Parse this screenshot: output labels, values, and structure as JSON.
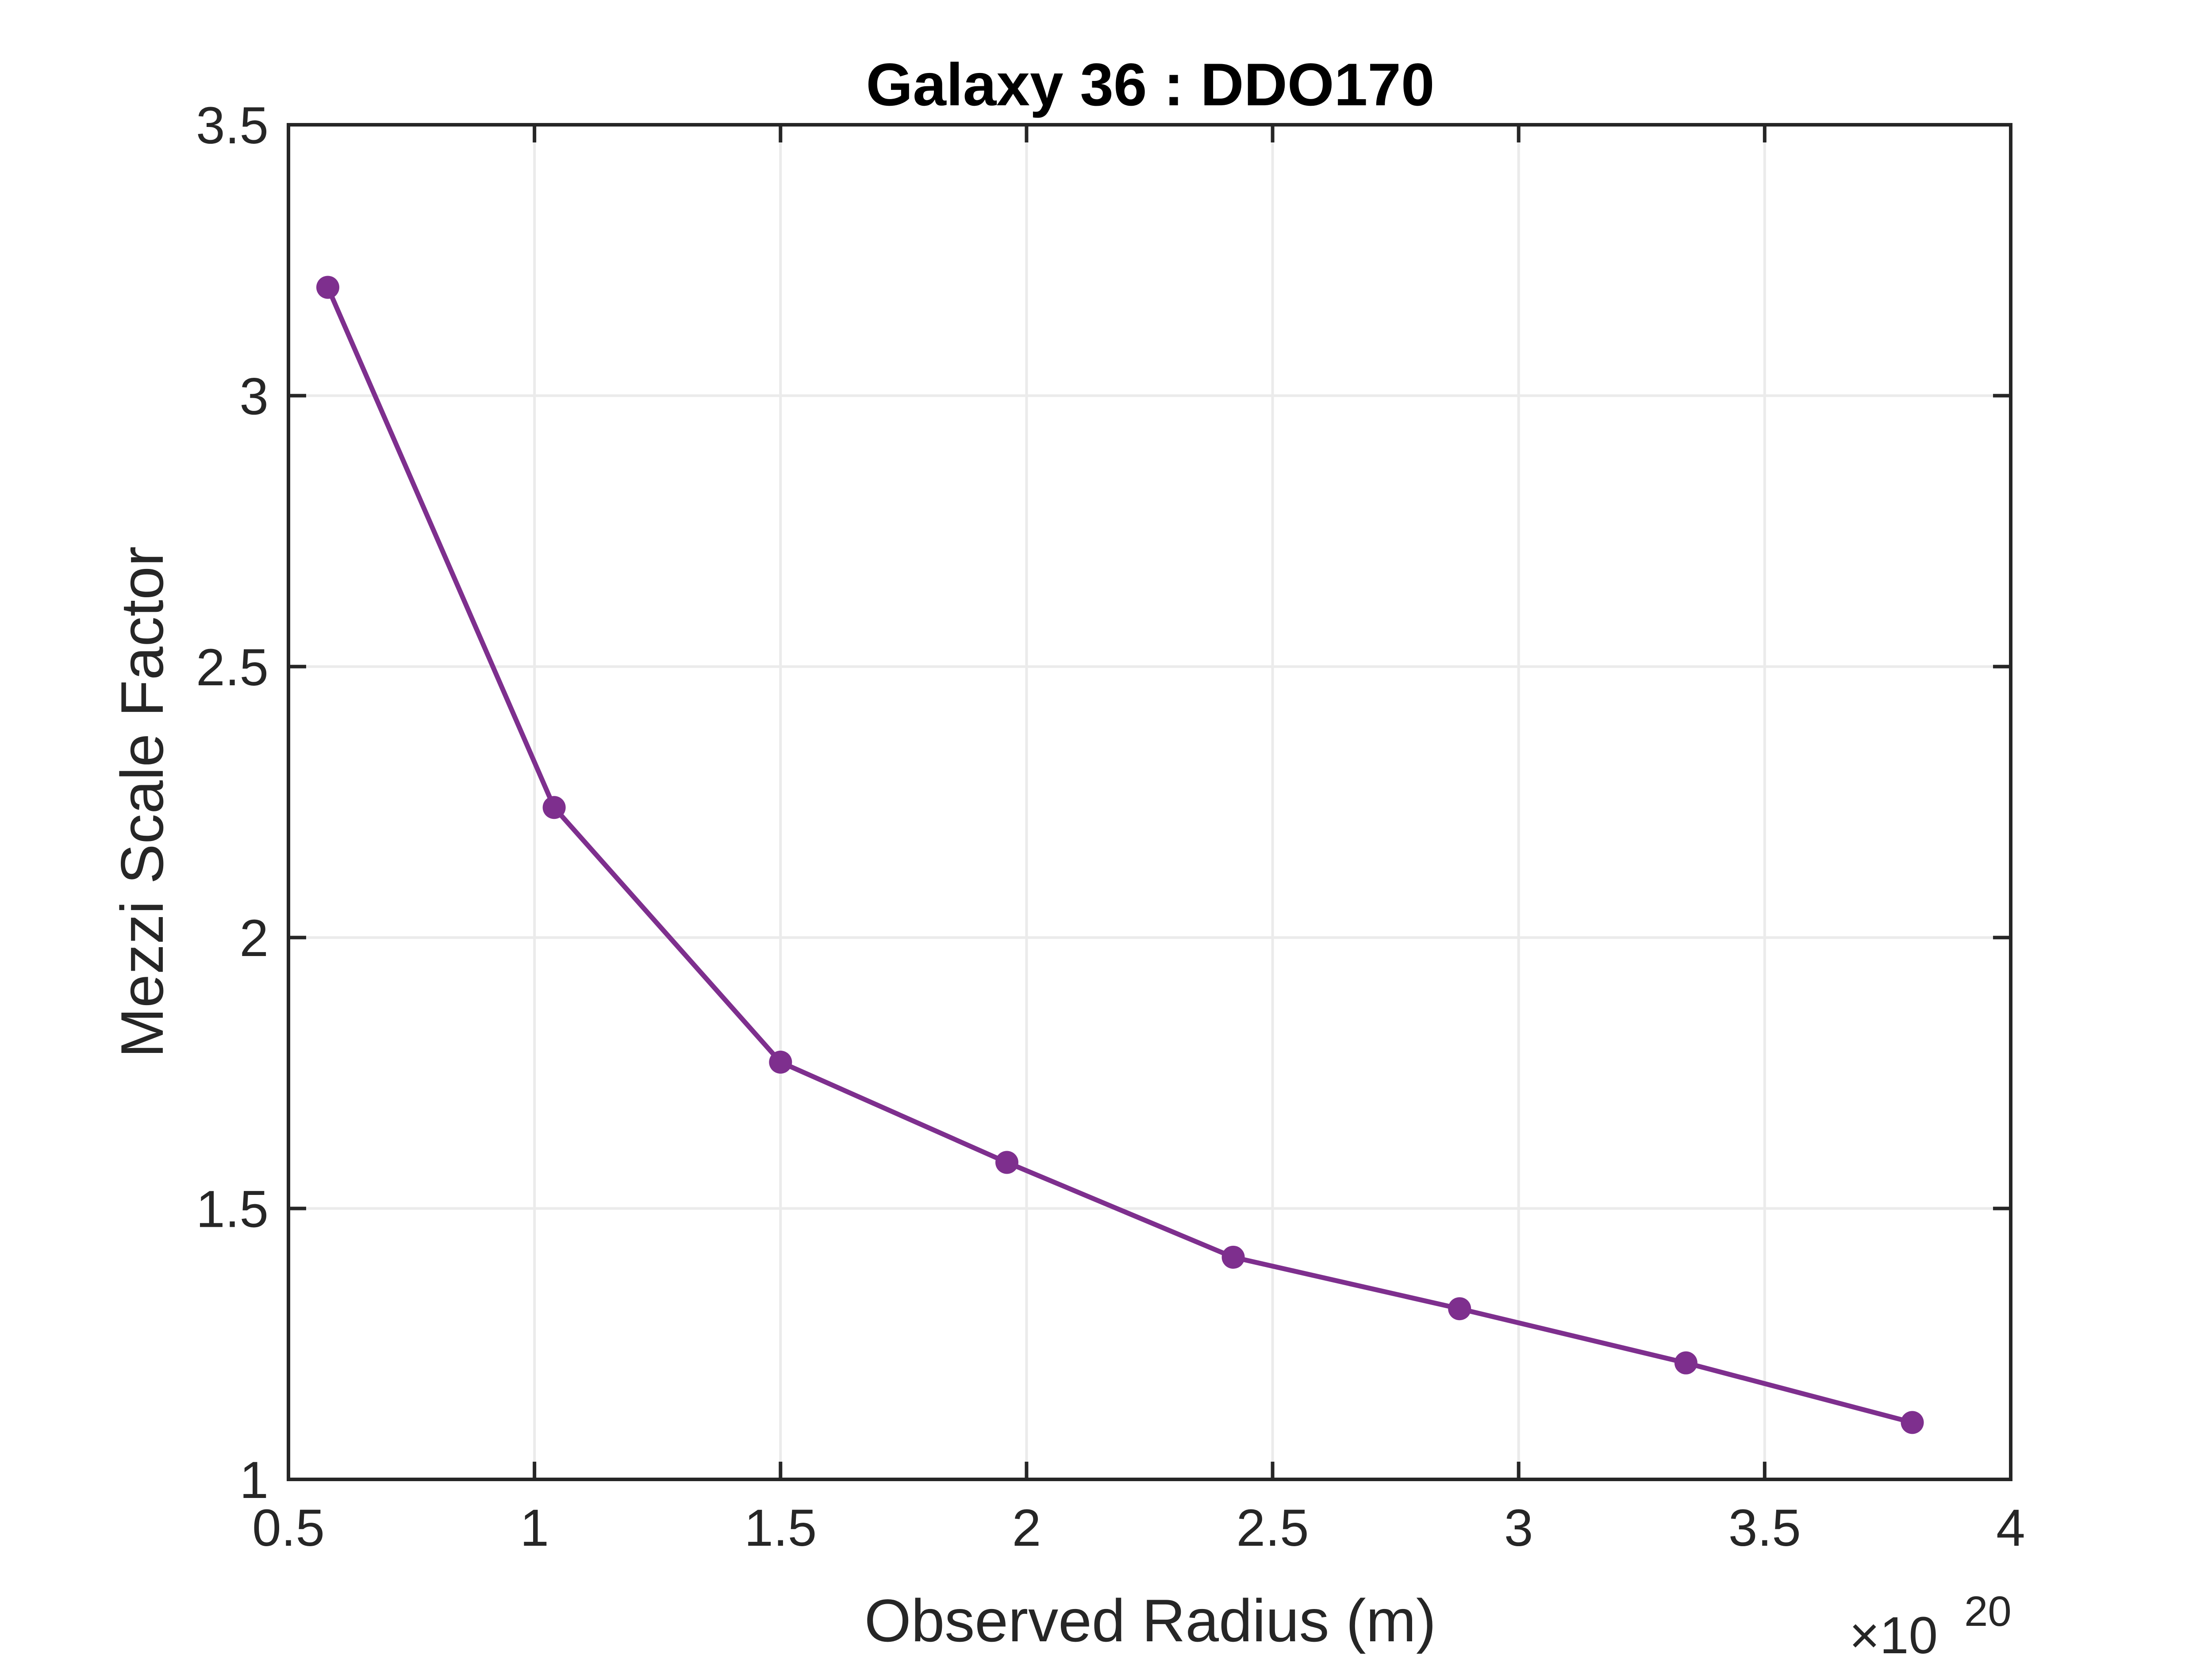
{
  "chart_data": {
    "type": "line",
    "title": "Galaxy 36 : DDO170",
    "xlabel": "Observed Radius (m)",
    "ylabel": "Mezzi Scale Factor",
    "x_multiplier_text": {
      "base": "×10",
      "exponent": "20"
    },
    "xlim": [
      0.5,
      4
    ],
    "ylim": [
      1,
      3.5
    ],
    "x_ticks": [
      0.5,
      1,
      1.5,
      2,
      2.5,
      3,
      3.5,
      4
    ],
    "x_tick_labels": [
      "0.5",
      "1",
      "1.5",
      "2",
      "2.5",
      "3",
      "3.5",
      "4"
    ],
    "y_ticks": [
      1,
      1.5,
      2,
      2.5,
      3,
      3.5
    ],
    "y_tick_labels": [
      "1",
      "1.5",
      "2",
      "2.5",
      "3",
      "3.5"
    ],
    "grid": true,
    "series": [
      {
        "color": "#7E2F8E",
        "marker": "circle",
        "x": [
          0.58,
          1.04,
          1.5,
          1.96,
          2.42,
          2.88,
          3.34,
          3.8
        ],
        "y": [
          3.2,
          2.24,
          1.77,
          1.585,
          1.41,
          1.315,
          1.215,
          1.105
        ]
      }
    ]
  }
}
